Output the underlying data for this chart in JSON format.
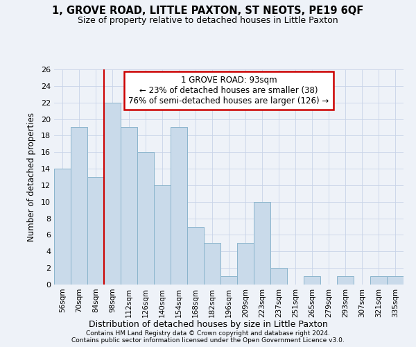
{
  "title": "1, GROVE ROAD, LITTLE PAXTON, ST NEOTS, PE19 6QF",
  "subtitle": "Size of property relative to detached houses in Little Paxton",
  "xlabel": "Distribution of detached houses by size in Little Paxton",
  "ylabel": "Number of detached properties",
  "bin_labels": [
    "56sqm",
    "70sqm",
    "84sqm",
    "98sqm",
    "112sqm",
    "126sqm",
    "140sqm",
    "154sqm",
    "168sqm",
    "182sqm",
    "196sqm",
    "209sqm",
    "223sqm",
    "237sqm",
    "251sqm",
    "265sqm",
    "279sqm",
    "293sqm",
    "307sqm",
    "321sqm",
    "335sqm"
  ],
  "bar_values": [
    14,
    19,
    13,
    22,
    19,
    16,
    12,
    19,
    7,
    5,
    1,
    5,
    10,
    2,
    0,
    1,
    0,
    1,
    0,
    1,
    1
  ],
  "bar_color": "#c9daea",
  "bar_edge_color": "#8ab4cc",
  "vline_x_index": 3,
  "vline_color": "#cc0000",
  "annotation_text": "1 GROVE ROAD: 93sqm\n← 23% of detached houses are smaller (38)\n76% of semi-detached houses are larger (126) →",
  "annotation_box_color": "#ffffff",
  "annotation_box_edge": "#cc0000",
  "ylim": [
    0,
    26
  ],
  "yticks": [
    0,
    2,
    4,
    6,
    8,
    10,
    12,
    14,
    16,
    18,
    20,
    22,
    24,
    26
  ],
  "footer_line1": "Contains HM Land Registry data © Crown copyright and database right 2024.",
  "footer_line2": "Contains public sector information licensed under the Open Government Licence v3.0.",
  "background_color": "#eef2f8",
  "grid_color": "#c8d4e8"
}
